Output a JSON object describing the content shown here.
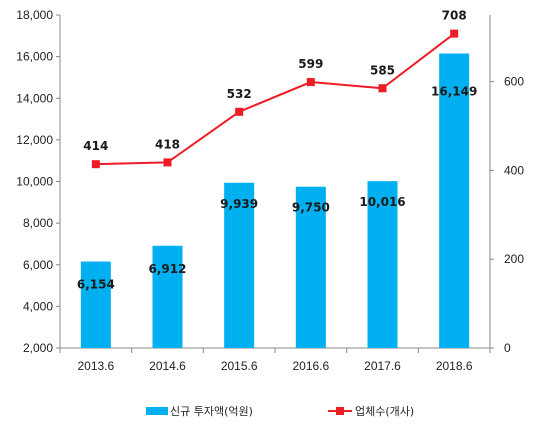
{
  "chart_data": {
    "type": "bar+line",
    "categories": [
      "2013.6",
      "2014.6",
      "2015.6",
      "2016.6",
      "2017.6",
      "2018.6"
    ],
    "series": [
      {
        "name": "신규 투자액(억원)",
        "type": "bar",
        "axis": "left",
        "values": [
          6154,
          6912,
          9939,
          9750,
          10016,
          16149
        ],
        "labels": [
          "6,154",
          "6,912",
          "9,939",
          "9,750",
          "10,016",
          "16,149"
        ],
        "color": "#00B0F0"
      },
      {
        "name": "업체수(개사)",
        "type": "line",
        "axis": "right",
        "values": [
          414,
          418,
          532,
          599,
          585,
          708
        ],
        "labels": [
          "414",
          "418",
          "532",
          "599",
          "585",
          "708"
        ],
        "color": "#EE1C25"
      }
    ],
    "y_left": {
      "min": 2000,
      "max": 18000,
      "ticks": [
        "2,000",
        "4,000",
        "6,000",
        "8,000",
        "10,000",
        "12,000",
        "14,000",
        "16,000",
        "18,000"
      ]
    },
    "y_right": {
      "min": 0,
      "max": 750,
      "ticks": [
        "0",
        "200",
        "400",
        "600"
      ],
      "tick_values": [
        0,
        200,
        400,
        600
      ]
    },
    "legend_position": "bottom",
    "grid": false
  }
}
